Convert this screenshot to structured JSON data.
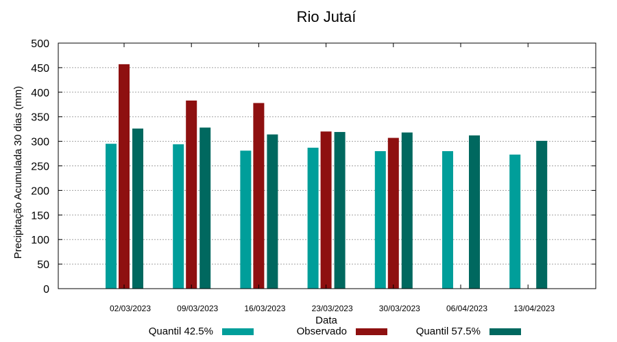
{
  "chart_data": {
    "type": "bar",
    "title": "Rio Jutaí",
    "xlabel": "Data",
    "ylabel": "Precipitação Acumulada 30 dias (mm)",
    "ylim": [
      0,
      500
    ],
    "yticks": [
      0,
      50,
      100,
      150,
      200,
      250,
      300,
      350,
      400,
      450,
      500
    ],
    "grid": true,
    "legend_position": "bottom",
    "categories": [
      "02/03/2023",
      "09/03/2023",
      "16/03/2023",
      "23/03/2023",
      "30/03/2023",
      "06/04/2023",
      "13/04/2023"
    ],
    "series": [
      {
        "name": "Quantil 42.5%",
        "color": "#009e9a",
        "values": [
          295,
          294,
          281,
          287,
          280,
          280,
          273
        ]
      },
      {
        "name": "Observado",
        "color": "#8e1010",
        "values": [
          457,
          383,
          378,
          320,
          307,
          null,
          null
        ]
      },
      {
        "name": "Quantil 57.5%",
        "color": "#00685f",
        "values": [
          326,
          328,
          314,
          319,
          318,
          312,
          301
        ]
      }
    ]
  }
}
